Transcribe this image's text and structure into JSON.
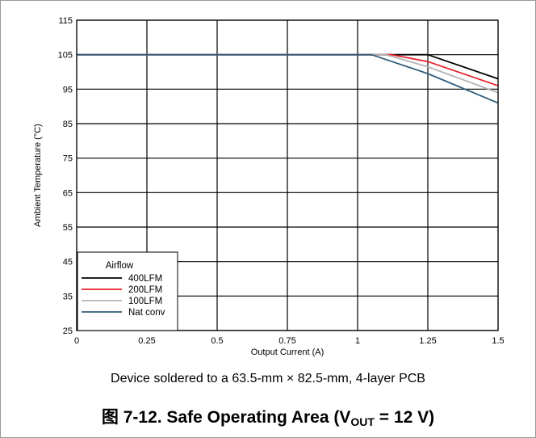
{
  "chart_data": {
    "type": "line",
    "xlabel": "Output Current (A)",
    "ylabel": "Ambient Temperature (°C)",
    "xlim": [
      0,
      1.5
    ],
    "ylim": [
      25,
      115
    ],
    "x_ticks": [
      "0",
      "0.25",
      "0.5",
      "0.75",
      "1",
      "1.25",
      "1.5"
    ],
    "y_ticks": [
      "25",
      "35",
      "45",
      "55",
      "65",
      "75",
      "85",
      "95",
      "105",
      "115"
    ],
    "grid": true,
    "legend": {
      "title": "Airflow",
      "placement": "bottom-left"
    },
    "series": [
      {
        "name": "400LFM",
        "color": "#000000",
        "x": [
          0,
          1.15,
          1.25,
          1.5
        ],
        "y": [
          105,
          105,
          105,
          98
        ]
      },
      {
        "name": "200LFM",
        "color": "#e8202a",
        "x": [
          0,
          1.12,
          1.25,
          1.5
        ],
        "y": [
          105,
          105,
          103,
          96
        ]
      },
      {
        "name": "100LFM",
        "color": "#b4b4b4",
        "x": [
          0,
          1.1,
          1.25,
          1.5
        ],
        "y": [
          105,
          105,
          101.5,
          94
        ]
      },
      {
        "name": "Nat conv",
        "color": "#2f5d7c",
        "x": [
          0,
          1.05,
          1.25,
          1.5
        ],
        "y": [
          105,
          105,
          99.5,
          91
        ]
      }
    ]
  },
  "caption": "Device soldered to a 63.5-mm × 82.5-mm, 4-layer PCB",
  "figure_title": {
    "prefix": "图 7-12. Safe Operating Area (V",
    "subscript": "OUT",
    "suffix": " = 12 V)"
  }
}
